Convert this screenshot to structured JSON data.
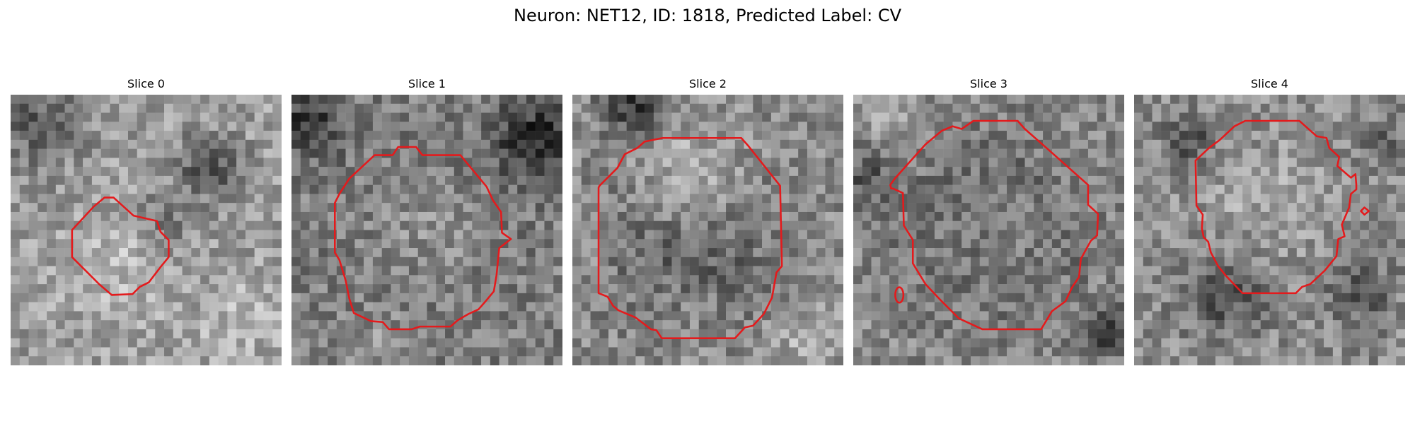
{
  "figure": {
    "title": "Neuron: NET12, ID: 1818, Predicted Label: CV"
  },
  "contour_color": "#e41a1c",
  "colormap": "grayscale",
  "slices": [
    {
      "title": "Slice 0"
    },
    {
      "title": "Slice 1"
    },
    {
      "title": "Slice 2"
    },
    {
      "title": "Slice 3"
    },
    {
      "title": "Slice 4"
    }
  ]
}
